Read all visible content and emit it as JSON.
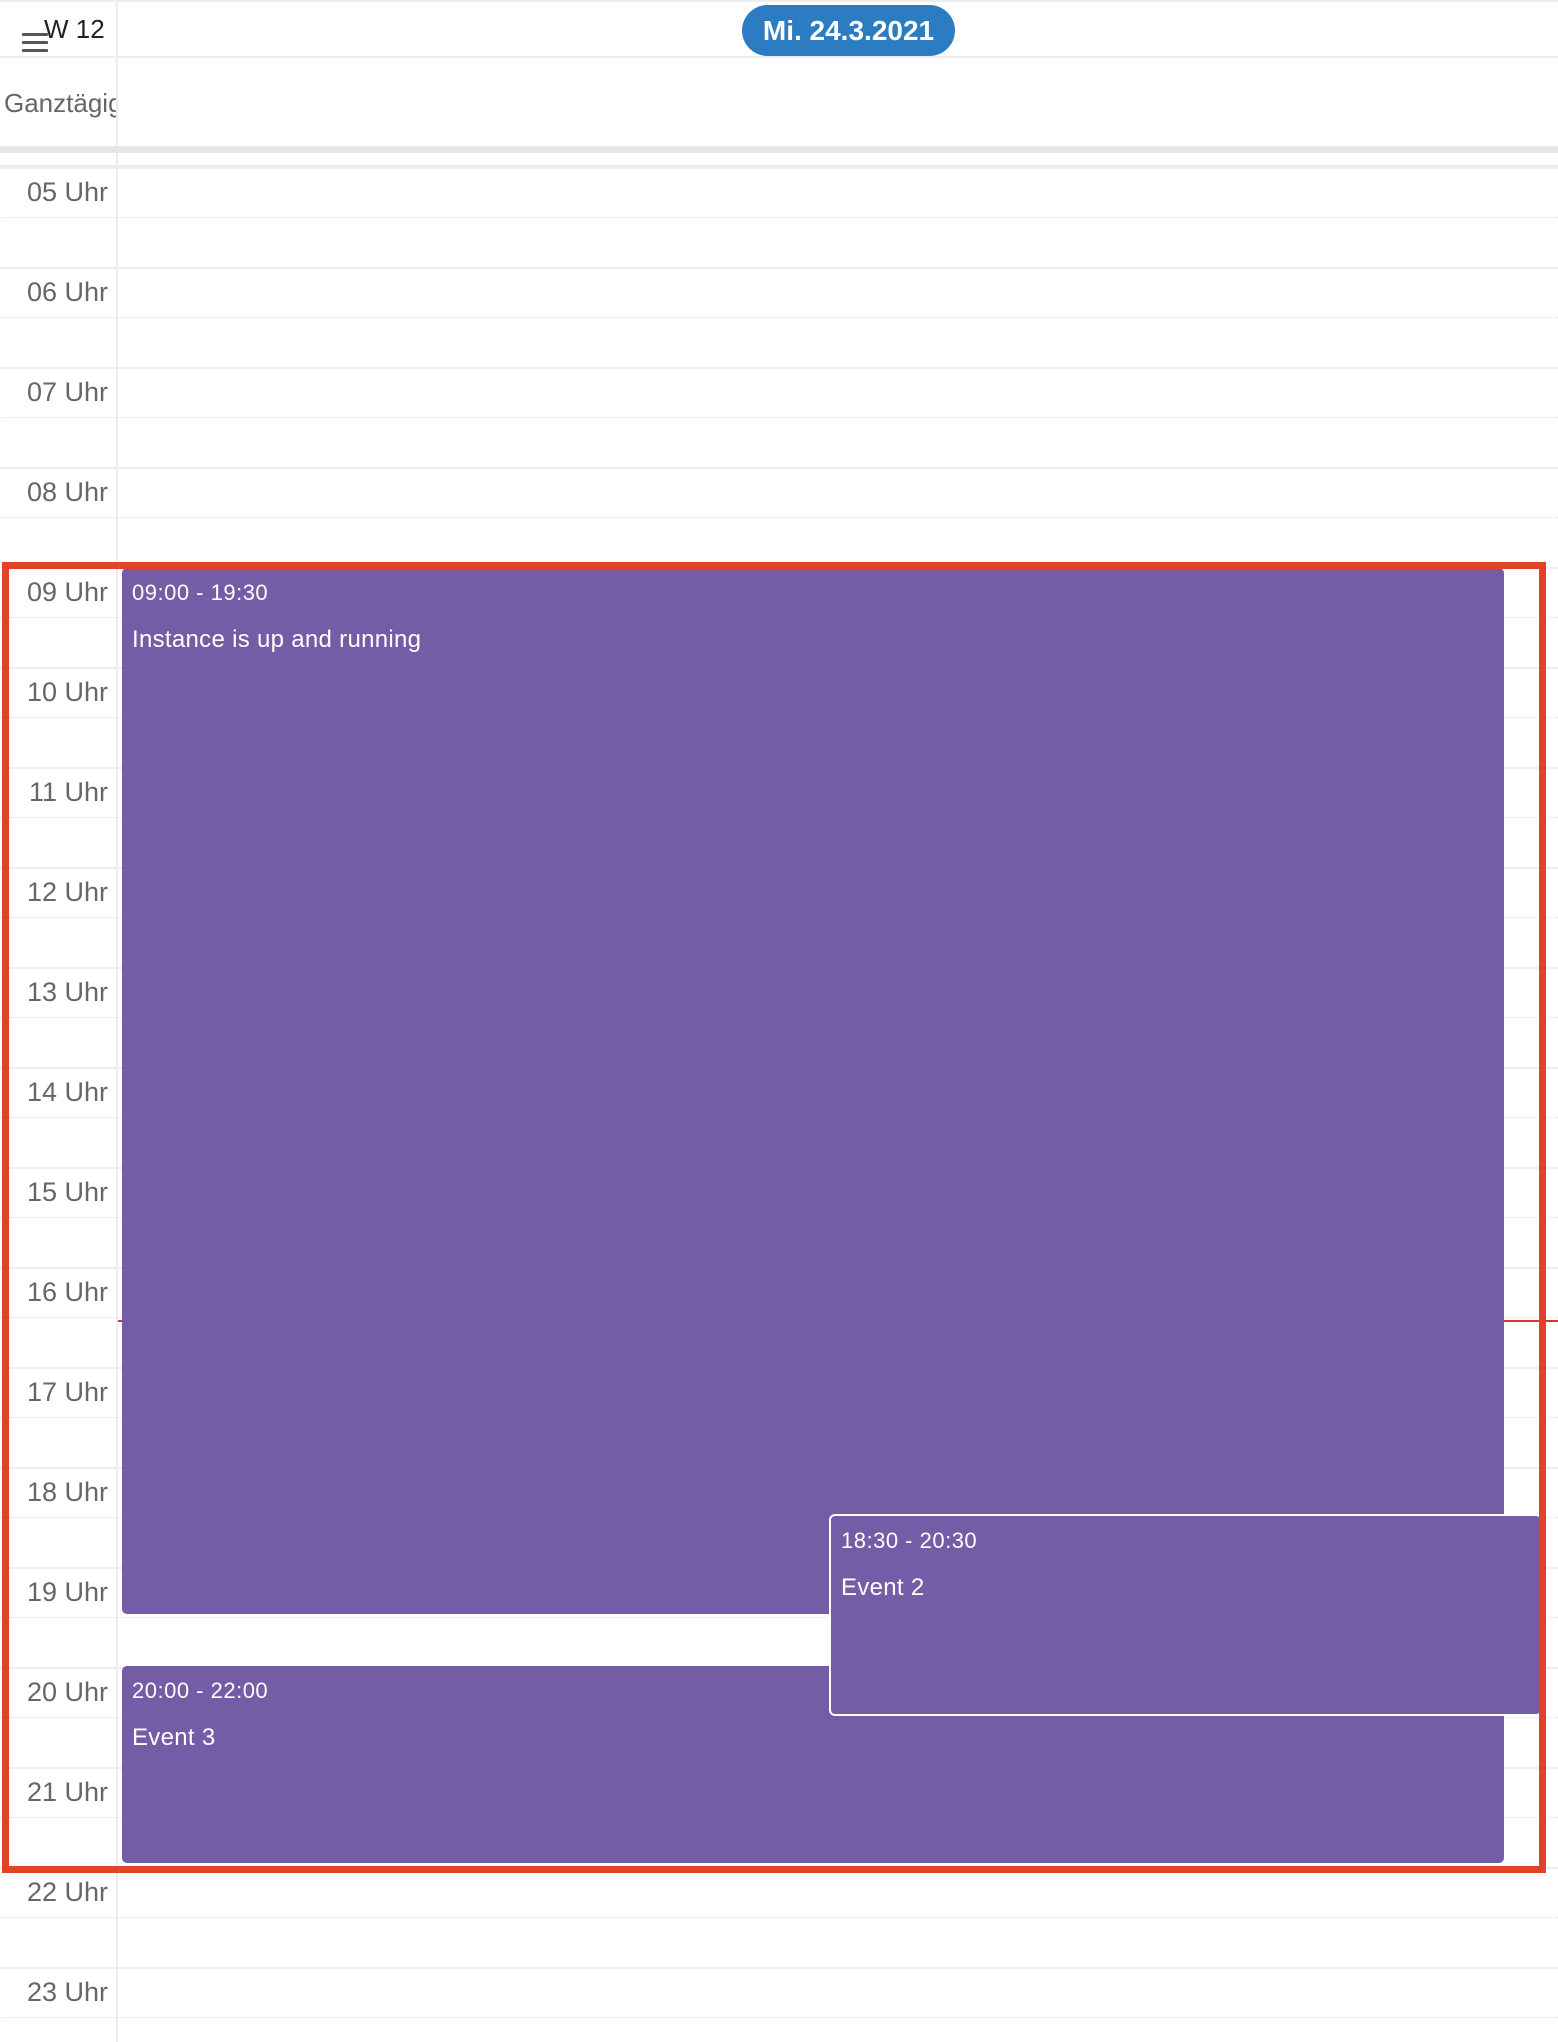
{
  "header": {
    "week_label": "W 12",
    "date_label": "Mi. 24.3.2021",
    "allday_label": "Ganztägig",
    "menu_icon": "hamburger-menu-icon"
  },
  "hours": [
    "05 Uhr",
    "06 Uhr",
    "07 Uhr",
    "08 Uhr",
    "09 Uhr",
    "10 Uhr",
    "11 Uhr",
    "12 Uhr",
    "13 Uhr",
    "14 Uhr",
    "15 Uhr",
    "16 Uhr",
    "17 Uhr",
    "18 Uhr",
    "19 Uhr",
    "20 Uhr",
    "21 Uhr",
    "22 Uhr",
    "23 Uhr"
  ],
  "events": {
    "event1": {
      "time": "09:00 - 19:30",
      "title": "Instance is up and running"
    },
    "event2": {
      "time": "18:30 - 20:30",
      "title": "Event 2"
    },
    "event3": {
      "time": "20:00 - 22:00",
      "title": "Event 3"
    }
  },
  "colors": {
    "event": "#745ca6",
    "date_pill": "#2c7cc2",
    "now_line": "#e03131",
    "highlight": "#e2412a"
  }
}
